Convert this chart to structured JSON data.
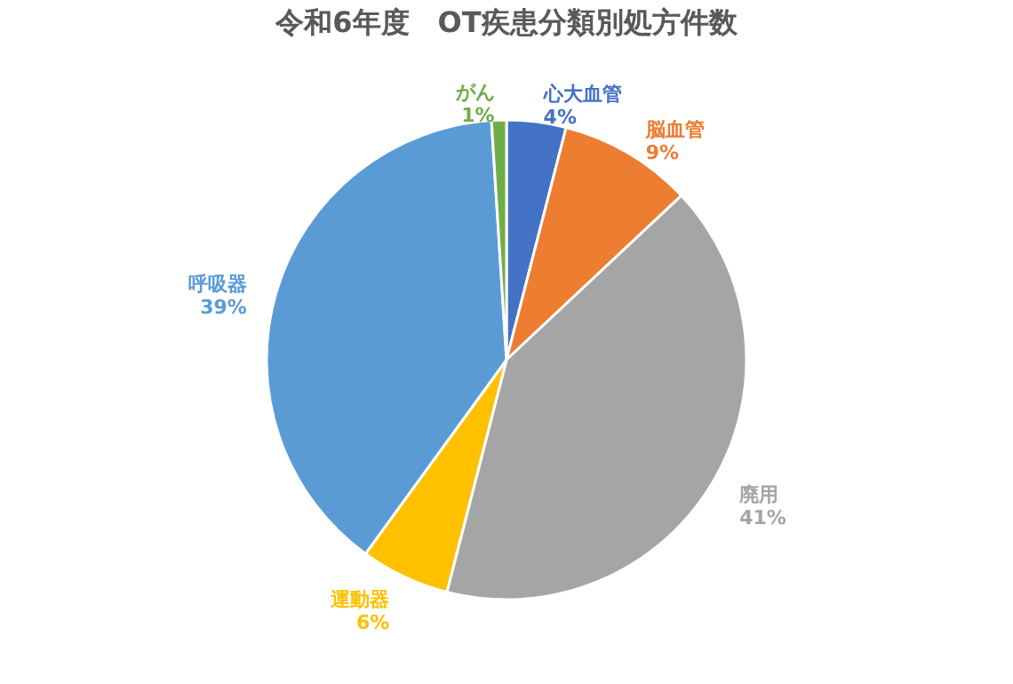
{
  "chart_data": {
    "type": "pie",
    "title": "令和6年度　OT疾患分類別処方件数",
    "categories": [
      "心大血管",
      "脳血管",
      "廃用",
      "運動器",
      "呼吸器",
      "がん"
    ],
    "values": [
      4,
      9,
      41,
      6,
      39,
      1
    ],
    "colors": [
      "#4472c4",
      "#ed7d31",
      "#a5a5a5",
      "#ffc000",
      "#5b9bd5",
      "#70ad47"
    ],
    "value_labels": [
      "4%",
      "9%",
      "41%",
      "6%",
      "39%",
      "1%"
    ],
    "legend": false
  }
}
